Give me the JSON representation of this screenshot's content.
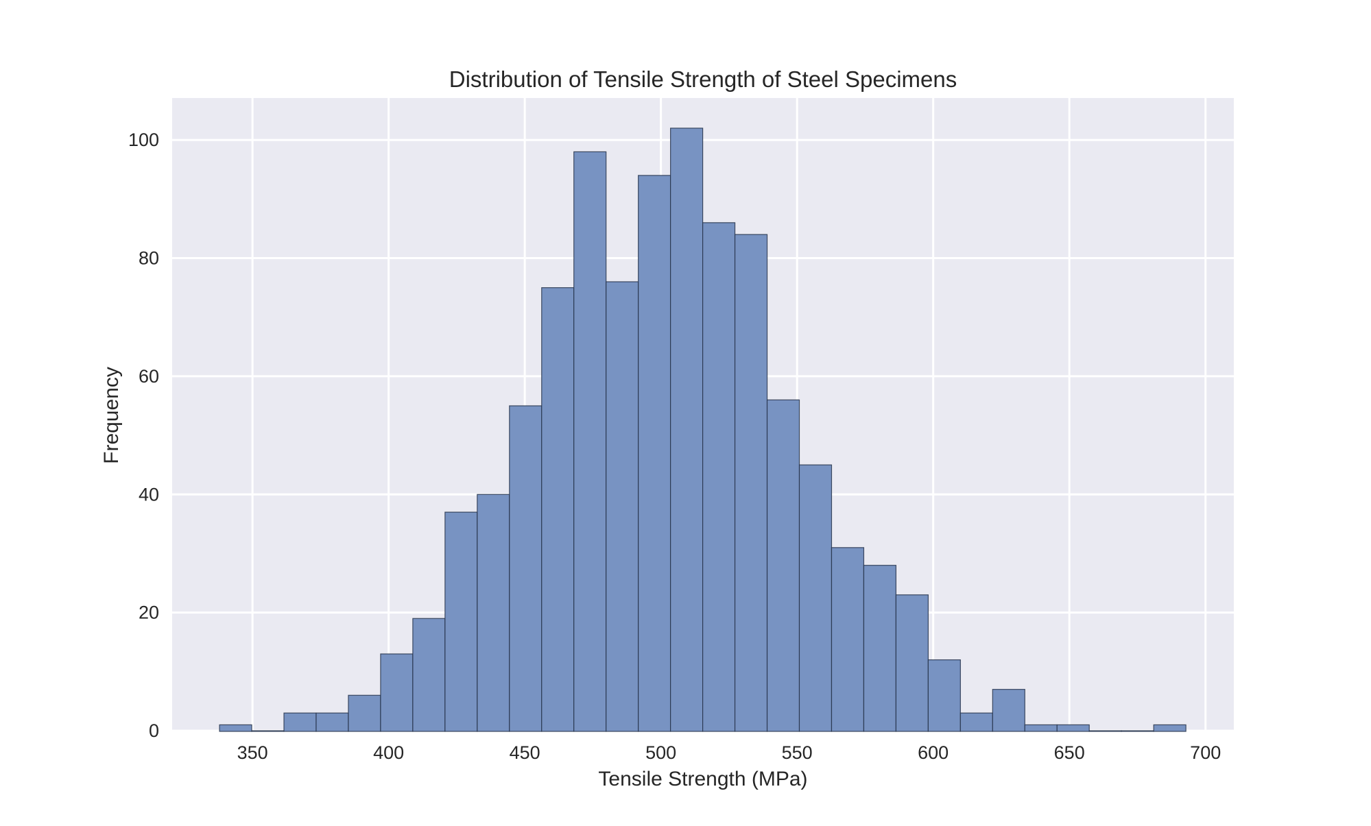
{
  "chart_data": {
    "type": "bar",
    "subtype": "histogram",
    "title": "Distribution of Tensile Strength of Steel Specimens",
    "xlabel": "Tensile Strength (MPa)",
    "ylabel": "Frequency",
    "xlim": [
      320.5,
      710.4
    ],
    "ylim": [
      0,
      107.1
    ],
    "xticks": [
      350,
      400,
      450,
      500,
      550,
      600,
      650,
      700
    ],
    "yticks": [
      0,
      20,
      40,
      60,
      80,
      100
    ],
    "grid": true,
    "legend": null,
    "bin_start": 337.9,
    "bin_width": 11.83,
    "bin_edges": [
      337.9,
      349.7,
      361.6,
      373.4,
      385.2,
      397.0,
      408.9,
      420.7,
      432.5,
      444.4,
      456.2,
      468.0,
      479.9,
      491.7,
      503.5,
      515.4,
      527.2,
      539.0,
      550.8,
      562.7,
      574.5,
      586.3,
      598.2,
      610.0,
      621.8,
      633.7,
      645.5,
      657.3,
      669.2,
      681.0,
      692.8
    ],
    "values": [
      1,
      0,
      3,
      3,
      6,
      13,
      19,
      37,
      40,
      55,
      75,
      98,
      76,
      94,
      102,
      86,
      84,
      56,
      45,
      31,
      28,
      23,
      12,
      3,
      7,
      1,
      1,
      0,
      0,
      1
    ],
    "colors": {
      "bar_fill": "#7893C2",
      "bar_edge": "#26324a",
      "plot_background": "#EAEAF2",
      "grid": "#FFFFFF",
      "text": "#262626"
    }
  }
}
